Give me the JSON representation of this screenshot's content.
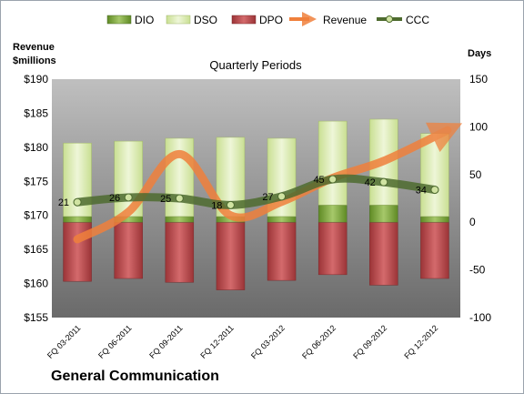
{
  "chart_data": {
    "type": "bar",
    "title": "Quarterly Periods",
    "company": "General Communication",
    "left_axis": {
      "label_line1": "Revenue",
      "label_line2": "$millions",
      "ylim": [
        155,
        190
      ],
      "ticks": [
        "$155",
        "$160",
        "$165",
        "$170",
        "$175",
        "$180",
        "$185",
        "$190"
      ]
    },
    "right_axis": {
      "label": "Days",
      "ylim": [
        -100,
        150
      ],
      "ticks": [
        "-100",
        "-50",
        "0",
        "50",
        "100",
        "150"
      ]
    },
    "categories": [
      "FQ 03-2011",
      "FQ 06-2011",
      "FQ 09-2011",
      "FQ 12-2011",
      "FQ 03-2012",
      "FQ 06-2012",
      "FQ 09-2012",
      "FQ 12-2012"
    ],
    "legend": [
      "DIO",
      "DSO",
      "DPO",
      "Revenue",
      "CCC"
    ],
    "series": [
      {
        "name": "DIO",
        "axis": "right",
        "values": [
          6,
          6,
          6,
          6,
          6,
          18,
          18,
          6
        ]
      },
      {
        "name": "DSO",
        "axis": "right",
        "values": [
          77,
          79,
          82,
          83,
          82,
          88,
          90,
          87
        ]
      },
      {
        "name": "DPO",
        "axis": "right",
        "values": [
          -62,
          -59,
          -63,
          -71,
          -61,
          -55,
          -66,
          -59
        ]
      },
      {
        "name": "Revenue",
        "axis": "left",
        "values": [
          166.5,
          170.5,
          179.0,
          170.0,
          172.0,
          175.5,
          178.0,
          182.5
        ]
      },
      {
        "name": "CCC",
        "axis": "right",
        "values": [
          21,
          26,
          25,
          18,
          27,
          45,
          42,
          34
        ],
        "labels": [
          "21",
          "26",
          "25",
          "18",
          "27",
          "45",
          "42",
          "34"
        ]
      }
    ],
    "colors": {
      "DIO": "#7fa33a",
      "DSO": "#d8eaae",
      "DPO": "#b94b4e",
      "Revenue": "#f0803c",
      "CCC": "#4e6b2f"
    },
    "legend_position": "top",
    "grid": false
  }
}
